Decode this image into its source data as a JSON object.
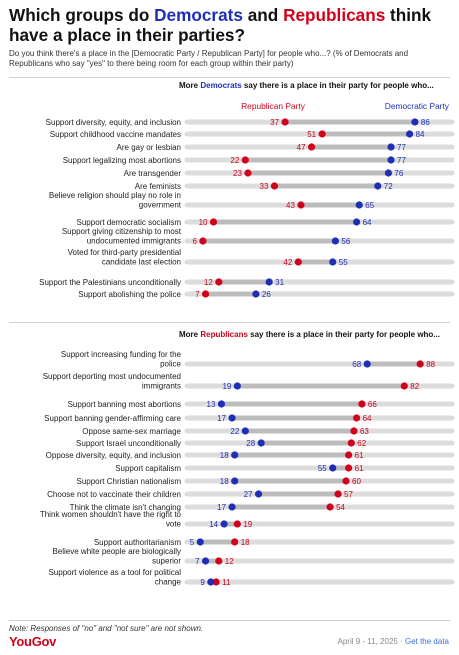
{
  "title": {
    "pre": "Which groups do ",
    "dem": "Democrats",
    "mid": " and ",
    "rep": "Republicans",
    "post": " think have a place in their parties?"
  },
  "subtitle": "Do you think there's a place in the [Democratic Party / Republican Party] for people who...? (% of Democrats and Republicans who say \"yes\" to there being room for each group within their party)",
  "colors": {
    "democrat": "#1f2fb5",
    "republican": "#d0021b",
    "track": "#dcdcdc"
  },
  "chart_data": [
    {
      "type": "dumbbell",
      "title_pre": "More ",
      "title_party": "Democrats",
      "title_post": " say there is a place in their party for people who...",
      "legend": {
        "republican": "Republican Party",
        "democrat": "Democratic Party"
      },
      "xlim": [
        0,
        100
      ],
      "rows": [
        {
          "label": [
            "Support diversity, equity, and inclusion"
          ],
          "rep": 37,
          "dem": 86
        },
        {
          "label": [
            "Support childhood vaccine mandates"
          ],
          "rep": 51,
          "dem": 84
        },
        {
          "label": [
            "Are gay or lesbian"
          ],
          "rep": 47,
          "dem": 77
        },
        {
          "label": [
            "Support legalizing most abortions"
          ],
          "rep": 22,
          "dem": 77
        },
        {
          "label": [
            "Are transgender"
          ],
          "rep": 23,
          "dem": 76
        },
        {
          "label": [
            "Are feminists"
          ],
          "rep": 33,
          "dem": 72
        },
        {
          "label": [
            "Believe religion should play no role in",
            "government"
          ],
          "rep": 43,
          "dem": 65
        },
        {
          "label": [
            "Support democratic socialism"
          ],
          "rep": 10,
          "dem": 64
        },
        {
          "label": [
            "Support giving citizenship to most",
            "undocumented immigrants"
          ],
          "rep": 6,
          "dem": 56
        },
        {
          "label": [
            "Voted for third-party presidential",
            "candidate last election"
          ],
          "rep": 42,
          "dem": 55
        },
        {
          "label": [
            "Support the Palestinians unconditionally"
          ],
          "rep": 12,
          "dem": 31
        },
        {
          "label": [
            "Support abolishing the police"
          ],
          "rep": 7,
          "dem": 26
        }
      ]
    },
    {
      "type": "dumbbell",
      "title_pre": "More ",
      "title_party": "Republicans",
      "title_post": " say there is a place in their party for people who...",
      "xlim": [
        0,
        100
      ],
      "rows": [
        {
          "label": [
            "Support increasing funding for the",
            "police"
          ],
          "rep": 88,
          "dem": 68
        },
        {
          "label": [
            "Support deporting most undocumented",
            "immigrants"
          ],
          "rep": 82,
          "dem": 19
        },
        {
          "label": [
            "Support banning most abortions"
          ],
          "rep": 66,
          "dem": 13
        },
        {
          "label": [
            "Support banning gender-affirming care"
          ],
          "rep": 64,
          "dem": 17
        },
        {
          "label": [
            "Oppose same-sex marriage"
          ],
          "rep": 63,
          "dem": 22
        },
        {
          "label": [
            "Support Israel unconditionally"
          ],
          "rep": 62,
          "dem": 28
        },
        {
          "label": [
            "Oppose diversity, equity, and inclusion"
          ],
          "rep": 61,
          "dem": 18
        },
        {
          "label": [
            "Support capitalism"
          ],
          "rep": 61,
          "dem": 55
        },
        {
          "label": [
            "Support Christian nationalism"
          ],
          "rep": 60,
          "dem": 18
        },
        {
          "label": [
            "Choose not to vaccinate their children"
          ],
          "rep": 57,
          "dem": 27
        },
        {
          "label": [
            "Think the climate isn't changing"
          ],
          "rep": 54,
          "dem": 17
        },
        {
          "label": [
            "Think women shouldn't have the right to",
            "vote"
          ],
          "rep": 19,
          "dem": 14
        },
        {
          "label": [
            "Support authoritarianism"
          ],
          "rep": 18,
          "dem": 5
        },
        {
          "label": [
            "Believe white people are biologically",
            "superior"
          ],
          "rep": 12,
          "dem": 7
        },
        {
          "label": [
            "Support violence as a tool for political",
            "change"
          ],
          "rep": 11,
          "dem": 9
        }
      ]
    }
  ],
  "footer": {
    "note": "Note: Responses of \"no\" and \"not sure\" are not shown.",
    "brand": "YouGov",
    "date": "April 9 - 11, 2025 · ",
    "link": "Get the data"
  }
}
